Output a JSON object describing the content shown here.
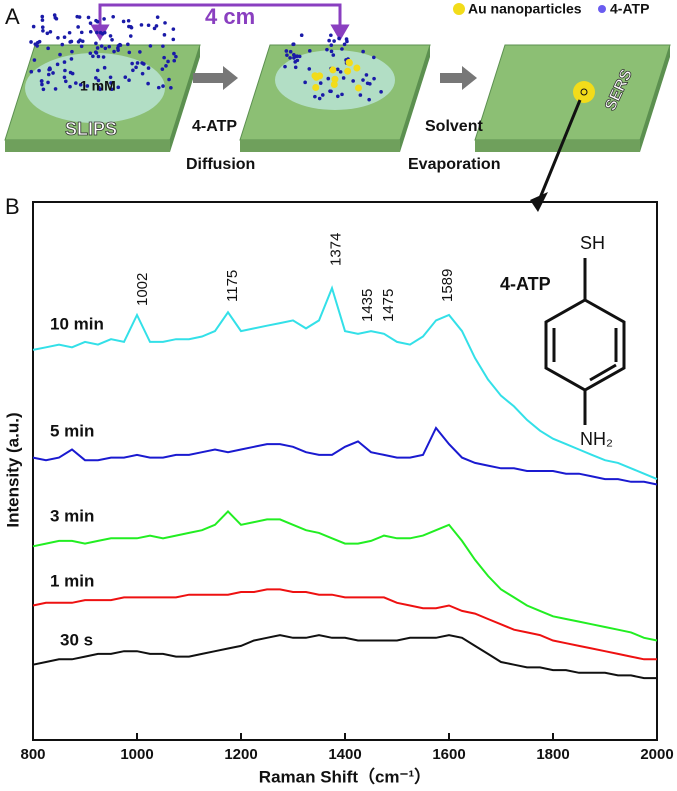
{
  "panel_a": {
    "label": "A",
    "distance": "4 cm",
    "legend": [
      "Au nanoparticles",
      "4-ATP"
    ],
    "concentration": "1 mM",
    "substrate": "SLIPS",
    "step1": [
      "4-ATP",
      "Diffusion"
    ],
    "step2": [
      "Solvent",
      "Evaporation"
    ],
    "detection": "SERS"
  },
  "panel_b": {
    "label": "B"
  },
  "molecule": {
    "top": "SH",
    "name": "4-ATP",
    "bottom": "NH₂"
  },
  "chart_data": {
    "type": "line",
    "xlabel": "Raman Shift（cm⁻¹）",
    "ylabel": "Intensity (a.u.)",
    "x": [
      800,
      825,
      850,
      875,
      900,
      925,
      950,
      975,
      1000,
      1025,
      1050,
      1075,
      1100,
      1125,
      1150,
      1175,
      1200,
      1225,
      1250,
      1275,
      1300,
      1325,
      1350,
      1375,
      1400,
      1425,
      1450,
      1475,
      1500,
      1525,
      1550,
      1575,
      1600,
      1625,
      1650,
      1675,
      1700,
      1725,
      1750,
      1775,
      1800,
      1825,
      1850,
      1875,
      1900,
      1925,
      1950,
      1975,
      2000
    ],
    "series": [
      {
        "name": "10 min",
        "color": "#33e0e8",
        "values": [
          72.5,
          73,
          73.5,
          73,
          74,
          73.5,
          74.5,
          74,
          79,
          74,
          74,
          74.5,
          74.5,
          75,
          76,
          79.5,
          76,
          76.5,
          77,
          77.5,
          78,
          76.5,
          78,
          84,
          76,
          75.5,
          76,
          75.5,
          74,
          73.5,
          75,
          78,
          79,
          76,
          71,
          67,
          64,
          62,
          59.5,
          57.5,
          56,
          55,
          54,
          53,
          52,
          51.5,
          50.5,
          49.5,
          48.5
        ]
      },
      {
        "name": "5 min",
        "color": "#1a1ad0",
        "values": [
          52.5,
          52,
          52.5,
          54,
          52,
          52,
          52.5,
          52.5,
          53,
          52.5,
          52.5,
          53,
          53,
          53.5,
          54,
          53.5,
          54,
          54.5,
          55,
          55,
          54.5,
          53.5,
          53,
          53,
          54.5,
          55.5,
          53.5,
          53,
          52.5,
          52.5,
          53,
          58,
          55,
          52.5,
          51.5,
          51,
          50.5,
          50.5,
          50,
          50,
          50,
          49.5,
          49.5,
          49,
          48.5,
          48.5,
          48,
          48,
          47.5
        ]
      },
      {
        "name": "3 min",
        "color": "#22ee22",
        "values": [
          36,
          36.5,
          37,
          37,
          36.5,
          37,
          37.5,
          37.5,
          37.5,
          38,
          37.5,
          38,
          38.5,
          39,
          40,
          42.5,
          40,
          40.5,
          41,
          41,
          40,
          39,
          38.5,
          37.5,
          36.5,
          36.5,
          37,
          38,
          37.5,
          37.5,
          38,
          39,
          40,
          37,
          33.5,
          30.5,
          28,
          26.5,
          25,
          24,
          23,
          22.5,
          22,
          21.5,
          21,
          20.5,
          20,
          19,
          18.5
        ]
      },
      {
        "name": "1 min",
        "color": "#ee1111",
        "values": [
          25,
          25.5,
          25.5,
          25.5,
          26,
          26,
          26,
          26.5,
          26.5,
          26.5,
          26.5,
          26.5,
          27,
          27,
          27,
          27,
          27.5,
          27.5,
          28,
          28,
          27.5,
          27.5,
          27,
          27,
          26.5,
          26.5,
          26.5,
          26.5,
          25.5,
          25,
          24.5,
          24.5,
          25,
          24,
          23.5,
          22.5,
          21.5,
          20.5,
          20,
          19.5,
          18.5,
          18,
          17.5,
          17,
          16.5,
          16,
          15.5,
          15,
          15
        ]
      },
      {
        "name": "30 s",
        "color": "#111111",
        "values": [
          14,
          14.5,
          15,
          15,
          15.5,
          16,
          16,
          16.5,
          16.5,
          16,
          16,
          15.5,
          15.5,
          16,
          16.5,
          17,
          17.5,
          18.5,
          19,
          19.5,
          19,
          19,
          19.5,
          19,
          19,
          18.5,
          18.5,
          18.5,
          18.5,
          19,
          19,
          19,
          19.5,
          19,
          17.5,
          16,
          14.5,
          14,
          13.5,
          13.5,
          13,
          13,
          12.5,
          12.5,
          12.5,
          12,
          12,
          11.5,
          11.5
        ]
      }
    ],
    "peak_labels": [
      1002,
      1175,
      1374,
      1435,
      1475,
      1589
    ],
    "xlim": [
      800,
      2000
    ],
    "xticks": [
      800,
      1000,
      1200,
      1400,
      1600,
      1800,
      2000
    ],
    "ylim": [
      0,
      100
    ]
  }
}
